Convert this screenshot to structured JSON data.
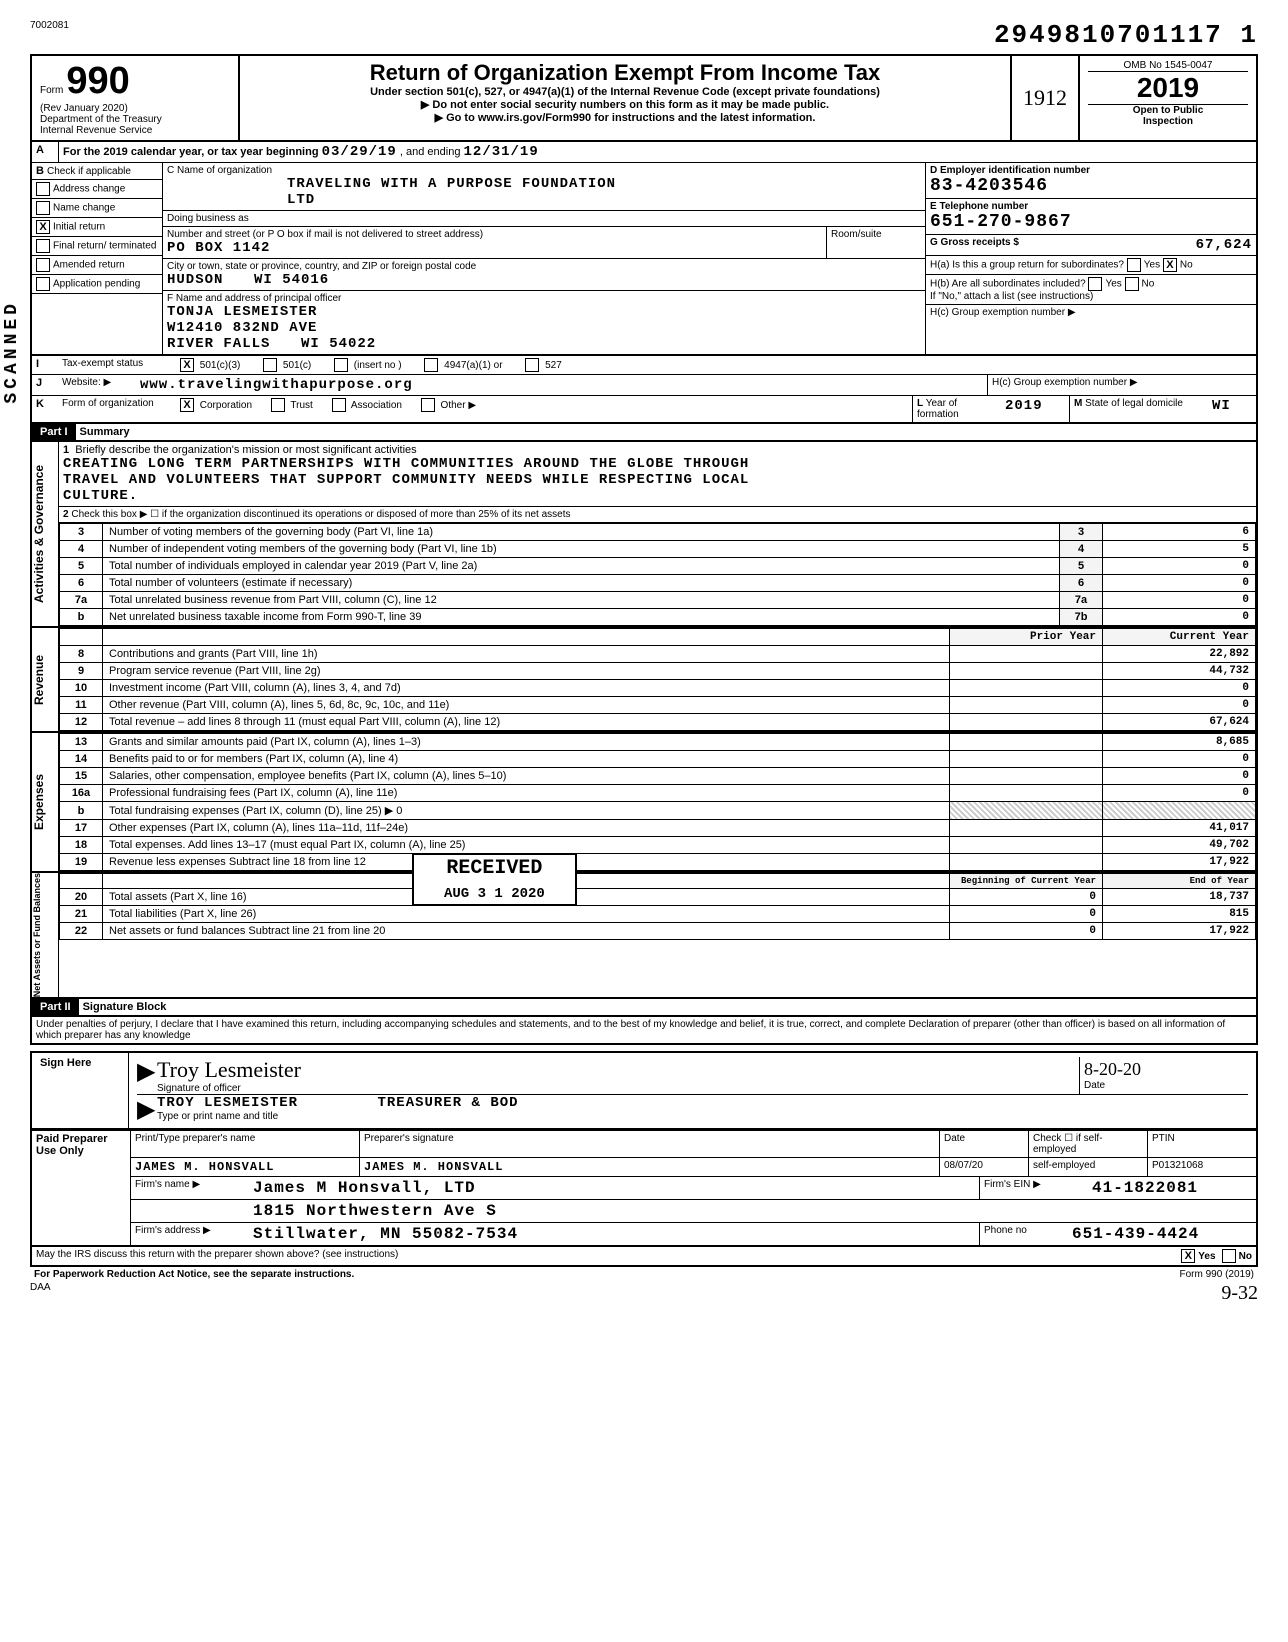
{
  "header": {
    "dln_small": "7002081",
    "top_code": "2949810701117 1",
    "form_no": "990",
    "rev": "(Rev January 2020)",
    "dept": "Department of the Treasury",
    "irs": "Internal Revenue Service",
    "title": "Return of Organization Exempt From Income Tax",
    "subtitle": "Under section 501(c), 527, or 4947(a)(1) of the Internal Revenue Code (except private foundations)",
    "note1": "▶ Do not enter social security numbers on this form as it may be made public.",
    "note2": "▶ Go to www.irs.gov/Form990 for instructions and the latest information.",
    "handwrite_1912": "1912",
    "omb": "OMB No 1545-0047",
    "year": "2019",
    "open": "Open to Public",
    "inspection": "Inspection"
  },
  "A": {
    "line": "For the 2019 calendar year, or tax year beginning",
    "begin": "03/29/19",
    "mid": ", and ending",
    "end": "12/31/19"
  },
  "B": {
    "hdr": "Check if applicable",
    "opts": [
      "Address change",
      "Name change",
      "Initial return",
      "Final return/ terminated",
      "Amended return",
      "Application pending"
    ],
    "checked_idx": 2
  },
  "C": {
    "label": "C  Name of organization",
    "name": "TRAVELING WITH A PURPOSE FOUNDATION",
    "name2": "LTD",
    "dba_label": "Doing business as",
    "street_label": "Number and street (or P O box if mail is not delivered to street address)",
    "street": "PO BOX 1142",
    "room_label": "Room/suite",
    "city_label": "City or town, state or province, country, and ZIP or foreign postal code",
    "city": "HUDSON",
    "state_zip": "WI  54016",
    "officer_label": "F  Name and address of principal officer",
    "officer_name": "TONJA LESMEISTER",
    "officer_street": "W12410 832ND AVE",
    "officer_city": "RIVER FALLS",
    "officer_state": "WI  54022"
  },
  "D": {
    "label": "D  Employer identification number",
    "val": "83-4203546"
  },
  "E": {
    "label": "E  Telephone number",
    "val": "651-270-9867"
  },
  "G": {
    "label": "G  Gross receipts $",
    "val": "67,624"
  },
  "H": {
    "a_label": "H(a) Is this a group return for subordinates?",
    "a_yes": "Yes",
    "a_no": "No",
    "a_checked": "No",
    "b_label": "H(b) Are all subordinates included?",
    "b_yes": "Yes",
    "b_no": "No",
    "b_note": "If \"No,\" attach a list (see instructions)",
    "c_label": "H(c) Group exemption number ▶"
  },
  "I": {
    "label": "Tax-exempt status",
    "opts": [
      "501(c)(3)",
      "501(c)",
      "(insert no )",
      "4947(a)(1) or",
      "527"
    ],
    "checked_idx": 0
  },
  "J": {
    "label": "Website: ▶",
    "val": "www.travelingwithapurpose.org"
  },
  "K": {
    "label": "Form of organization",
    "opts": [
      "Corporation",
      "Trust",
      "Association",
      "Other ▶"
    ],
    "checked_idx": 0
  },
  "L": {
    "label": "Year of formation",
    "val": "2019"
  },
  "M": {
    "label": "State of legal domicile",
    "val": "WI"
  },
  "partI": {
    "title": "Part I",
    "subtitle": "Summary",
    "side_gov": "Activities & Governance",
    "side_rev": "Revenue",
    "side_exp": "Expenses",
    "side_net": "Net Assets or Fund Balances",
    "l1_label": "Briefly describe the organization's mission or most significant activities",
    "l1_text1": "CREATING LONG TERM PARTNERSHIPS WITH COMMUNITIES AROUND THE GLOBE THROUGH",
    "l1_text2": "TRAVEL AND VOLUNTEERS THAT SUPPORT COMMUNITY NEEDS WHILE RESPECTING LOCAL",
    "l1_text3": "CULTURE.",
    "l2_label": "Check this box ▶ ☐ if the organization discontinued its operations or disposed of more than 25% of its net assets",
    "prior_hdr": "Prior Year",
    "curr_hdr": "Current Year",
    "begin_hdr": "Beginning of Current Year",
    "end_hdr": "End of Year",
    "rows_top": [
      {
        "n": "3",
        "label": "Number of voting members of the governing body (Part VI, line 1a)",
        "box": "3",
        "val": "6"
      },
      {
        "n": "4",
        "label": "Number of independent voting members of the governing body (Part VI, line 1b)",
        "box": "4",
        "val": "5"
      },
      {
        "n": "5",
        "label": "Total number of individuals employed in calendar year 2019 (Part V, line 2a)",
        "box": "5",
        "val": "0"
      },
      {
        "n": "6",
        "label": "Total number of volunteers (estimate if necessary)",
        "box": "6",
        "val": "0"
      },
      {
        "n": "7a",
        "label": "Total unrelated business revenue from Part VIII, column (C), line 12",
        "box": "7a",
        "val": "0"
      },
      {
        "n": "b",
        "label": "Net unrelated business taxable income from Form 990-T, line 39",
        "box": "7b",
        "val": "0"
      }
    ],
    "rows_rev": [
      {
        "n": "8",
        "label": "Contributions and grants (Part VIII, line 1h)",
        "prior": "",
        "curr": "22,892"
      },
      {
        "n": "9",
        "label": "Program service revenue (Part VIII, line 2g)",
        "prior": "",
        "curr": "44,732"
      },
      {
        "n": "10",
        "label": "Investment income (Part VIII, column (A), lines 3, 4, and 7d)",
        "prior": "",
        "curr": "0"
      },
      {
        "n": "11",
        "label": "Other revenue (Part VIII, column (A), lines 5, 6d, 8c, 9c, 10c, and 11e)",
        "prior": "",
        "curr": "0"
      },
      {
        "n": "12",
        "label": "Total revenue – add lines 8 through 11 (must equal Part VIII, column (A), line 12)",
        "prior": "",
        "curr": "67,624"
      }
    ],
    "rows_exp": [
      {
        "n": "13",
        "label": "Grants and similar amounts paid (Part IX, column (A), lines 1–3)",
        "prior": "",
        "curr": "8,685"
      },
      {
        "n": "14",
        "label": "Benefits paid to or for members (Part IX, column (A), line 4)",
        "prior": "",
        "curr": "0"
      },
      {
        "n": "15",
        "label": "Salaries, other compensation, employee benefits (Part IX, column (A), lines 5–10)",
        "prior": "",
        "curr": "0"
      },
      {
        "n": "16a",
        "label": "Professional fundraising fees (Part IX, column (A), line 11e)",
        "prior": "",
        "curr": "0"
      },
      {
        "n": "b",
        "label": "Total fundraising expenses (Part IX, column (D), line 25) ▶                                    0",
        "prior": "—",
        "curr": "—"
      },
      {
        "n": "17",
        "label": "Other expenses (Part IX, column (A), lines 11a–11d, 11f–24e)",
        "prior": "",
        "curr": "41,017"
      },
      {
        "n": "18",
        "label": "Total expenses. Add lines 13–17 (must equal Part IX, column (A), line 25)",
        "prior": "",
        "curr": "49,702"
      },
      {
        "n": "19",
        "label": "Revenue less expenses  Subtract line 18 from line 12",
        "prior": "",
        "curr": "17,922"
      }
    ],
    "rows_net": [
      {
        "n": "20",
        "label": "Total assets (Part X, line 16)",
        "prior": "0",
        "curr": "18,737"
      },
      {
        "n": "21",
        "label": "Total liabilities (Part X, line 26)",
        "prior": "0",
        "curr": "815"
      },
      {
        "n": "22",
        "label": "Net assets or fund balances  Subtract line 21 from line 20",
        "prior": "0",
        "curr": "17,922"
      }
    ],
    "stamp_received": "RECEIVED",
    "stamp_date": "AUG 3 1 2020"
  },
  "partII": {
    "title": "Part II",
    "subtitle": "Signature Block",
    "perjury": "Under penalties of perjury, I declare that I have examined this return, including accompanying schedules and statements, and to the best of my knowledge and belief, it is true, correct, and complete  Declaration of preparer (other than officer) is based on all information of which preparer has any knowledge",
    "sign_here": "Sign Here",
    "sig_script": "Troy Lesmeister",
    "sig_label": "Signature of officer",
    "date": "8-20-20",
    "date_label": "Date",
    "name": "TROY LESMEISTER",
    "title_role": "TREASURER & BOD",
    "type_label": "Type or print name and title"
  },
  "paid": {
    "hdr": "Paid Preparer Use Only",
    "col1": "Print/Type preparer's name",
    "col2": "Preparer's signature",
    "col3": "Date",
    "col4": "Check ☐ if self-employed",
    "col5": "PTIN",
    "name": "JAMES M. HONSVALL",
    "sig": "JAMES M. HONSVALL",
    "date": "08/07/20",
    "self": "self-employed",
    "ptin": "P01321068",
    "firm_label": "Firm's name ▶",
    "firm": "James M Honsvall, LTD",
    "firm_ein_label": "Firm's EIN ▶",
    "firm_ein": "41-1822081",
    "addr_label": "Firm's address ▶",
    "addr1": "1815 Northwestern Ave S",
    "addr2": "Stillwater, MN  55082-7534",
    "phone_label": "Phone no",
    "phone": "651-439-4424"
  },
  "footer": {
    "q": "May the IRS discuss this return with the preparer shown above? (see instructions)",
    "yes": "Yes",
    "no": "No",
    "checked": "Yes",
    "pra": "For Paperwork Reduction Act Notice, see the separate instructions.",
    "daa": "DAA",
    "form": "Form 990 (2019)",
    "hand": "9-32"
  },
  "colors": {
    "ink": "#000000",
    "bg": "#ffffff",
    "shade": "#f4f4f4"
  }
}
